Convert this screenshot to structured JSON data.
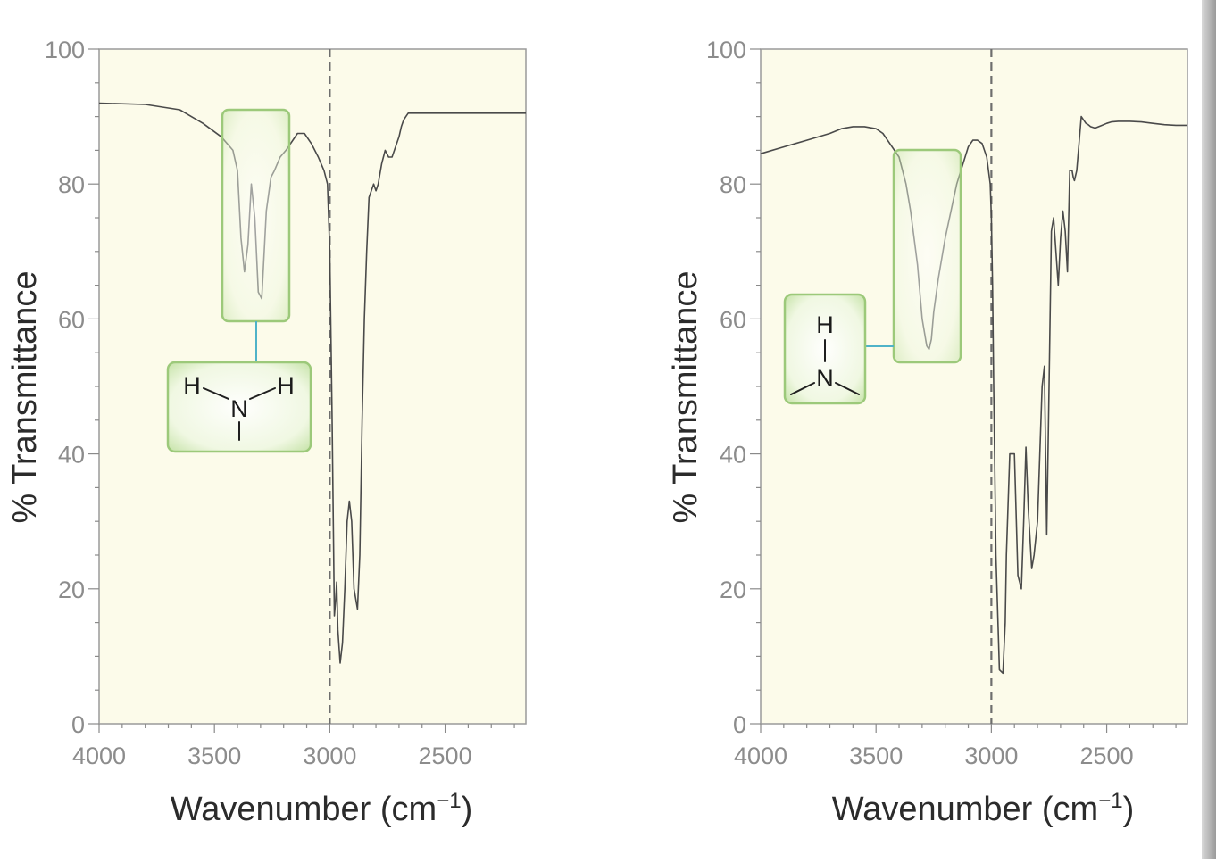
{
  "chart_data": [
    {
      "type": "line",
      "title": "",
      "xlabel": "Wavenumber (cm",
      "xlabel_sup": "−1",
      "xlabel_close": ")",
      "ylabel": "% Transmittance",
      "xlim": [
        4000,
        2150
      ],
      "ylim": [
        0,
        100
      ],
      "x_ticks": [
        4000,
        3500,
        3000,
        2500
      ],
      "y_ticks": [
        0,
        20,
        40,
        60,
        80,
        100
      ],
      "reference_line_x": 3000,
      "grid": false,
      "plot_background": "#fcfbea",
      "line_color": "#4a4a4a",
      "box_color": "#9cc97a",
      "highlight_range": [
        3420,
        3170
      ],
      "structure": {
        "type": "primary-amine",
        "atoms": [
          "H",
          "N",
          "H"
        ]
      },
      "series": [
        {
          "x": [
            4000,
            3800,
            3650,
            3550,
            3470,
            3420,
            3400,
            3385,
            3370,
            3355,
            3340,
            3325,
            3310,
            3295,
            3275,
            3255,
            3240,
            3215,
            3190,
            3170,
            3140,
            3110,
            3080,
            3050,
            3025,
            3010,
            3000,
            2990,
            2985,
            2980,
            2975,
            2970,
            2965,
            2955,
            2945,
            2935,
            2925,
            2915,
            2905,
            2895,
            2880,
            2870,
            2860,
            2850,
            2840,
            2830,
            2820,
            2810,
            2800,
            2790,
            2775,
            2760,
            2745,
            2730,
            2720,
            2700,
            2690,
            2680,
            2670,
            2660,
            2640,
            2620,
            2600,
            2580,
            2550,
            2500,
            2400,
            2300,
            2150
          ],
          "y": [
            92,
            91.8,
            91,
            89,
            87,
            85,
            82,
            72,
            67,
            71,
            80,
            75,
            64,
            63,
            76,
            81,
            82,
            84,
            85,
            86,
            87.5,
            87.5,
            86,
            84,
            82,
            80,
            70,
            45,
            30,
            16,
            18,
            21,
            14,
            9,
            12,
            20,
            30,
            33,
            30,
            20,
            17,
            25,
            45,
            60,
            70,
            78,
            79,
            80,
            79,
            80,
            83,
            85,
            84,
            84,
            85,
            87,
            88.5,
            89.5,
            90,
            90.5,
            90.5,
            90.5,
            90.5,
            90.5,
            90.5,
            90.5,
            90.5,
            90.5,
            90.5
          ]
        }
      ]
    },
    {
      "type": "line",
      "title": "",
      "xlabel": "Wavenumber (cm",
      "xlabel_sup": "−1",
      "xlabel_close": ")",
      "ylabel": "% Transmittance",
      "xlim": [
        4000,
        2150
      ],
      "ylim": [
        0,
        100
      ],
      "x_ticks": [
        4000,
        3500,
        3000,
        2500
      ],
      "y_ticks": [
        0,
        20,
        40,
        60,
        80,
        100
      ],
      "reference_line_x": 3000,
      "grid": false,
      "plot_background": "#fcfbea",
      "line_color": "#4a4a4a",
      "box_color": "#9cc97a",
      "highlight_range": [
        3500,
        3140
      ],
      "structure": {
        "type": "secondary-amine",
        "atoms": [
          "H",
          "N"
        ]
      },
      "series": [
        {
          "x": [
            4000,
            3900,
            3800,
            3700,
            3650,
            3600,
            3550,
            3500,
            3470,
            3450,
            3400,
            3370,
            3350,
            3320,
            3300,
            3280,
            3270,
            3260,
            3250,
            3230,
            3200,
            3150,
            3100,
            3080,
            3060,
            3040,
            3020,
            3005,
            3000,
            2995,
            2990,
            2980,
            2965,
            2950,
            2940,
            2935,
            2920,
            2900,
            2885,
            2870,
            2860,
            2850,
            2840,
            2825,
            2815,
            2800,
            2780,
            2770,
            2760,
            2750,
            2740,
            2730,
            2720,
            2710,
            2700,
            2690,
            2680,
            2670,
            2660,
            2650,
            2645,
            2640,
            2630,
            2610,
            2600,
            2590,
            2580,
            2570,
            2550,
            2520,
            2500,
            2480,
            2450,
            2400,
            2350,
            2300,
            2250,
            2200,
            2150
          ],
          "y": [
            84.5,
            85.5,
            86.5,
            87.5,
            88.2,
            88.5,
            88.5,
            88.2,
            87.5,
            86.5,
            84,
            80,
            76,
            68,
            60,
            56,
            55.5,
            57,
            61,
            66,
            72,
            80,
            85.5,
            86.5,
            86.5,
            86,
            84,
            80,
            75,
            65,
            50,
            25,
            8,
            7.5,
            15,
            25,
            40,
            40,
            22,
            20,
            30,
            41,
            32,
            23,
            25,
            30,
            50,
            53,
            28,
            50,
            73,
            75,
            70,
            65,
            72,
            76,
            73,
            67,
            82,
            82,
            81,
            80.5,
            82,
            90,
            89.5,
            89,
            88.8,
            88.5,
            88.3,
            88.7,
            89,
            89.2,
            89.3,
            89.3,
            89.2,
            89,
            88.8,
            88.7,
            88.7
          ]
        }
      ]
    }
  ]
}
